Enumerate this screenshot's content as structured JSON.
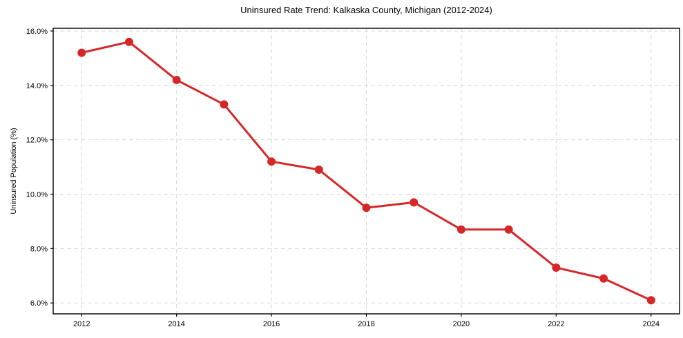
{
  "figure": {
    "title": "Uninsured Rate Trend: Kalkaska County, Michigan (2012-2024)",
    "ylabel": "Uninsured Population (%)"
  },
  "chart_data": {
    "type": "line",
    "title": "Uninsured Rate Trend: Kalkaska County, Michigan (2012-2024)",
    "xlabel": "",
    "ylabel": "Uninsured Population (%)",
    "x": [
      2012,
      2013,
      2014,
      2015,
      2016,
      2017,
      2018,
      2019,
      2020,
      2021,
      2022,
      2023,
      2024
    ],
    "values": [
      15.2,
      15.6,
      14.2,
      13.3,
      11.2,
      10.9,
      9.5,
      9.7,
      8.7,
      8.7,
      7.3,
      6.9,
      6.1
    ],
    "xlim": [
      2011.4,
      2024.6
    ],
    "ylim": [
      5.6,
      16.1
    ],
    "xticks": [
      2012,
      2014,
      2016,
      2018,
      2020,
      2022,
      2024
    ],
    "xtick_labels": [
      "2012",
      "2014",
      "2016",
      "2018",
      "2020",
      "2022",
      "2024"
    ],
    "yticks": [
      6,
      8,
      10,
      12,
      14,
      16
    ],
    "ytick_labels": [
      "6.0%",
      "8.0%",
      "10.0%",
      "12.0%",
      "14.0%",
      "16.0%"
    ],
    "grid": true,
    "legend": "none",
    "line_color": "#d62728",
    "marker": "o",
    "grid_color": "#d8d8d8",
    "spine_color": "#000000"
  }
}
